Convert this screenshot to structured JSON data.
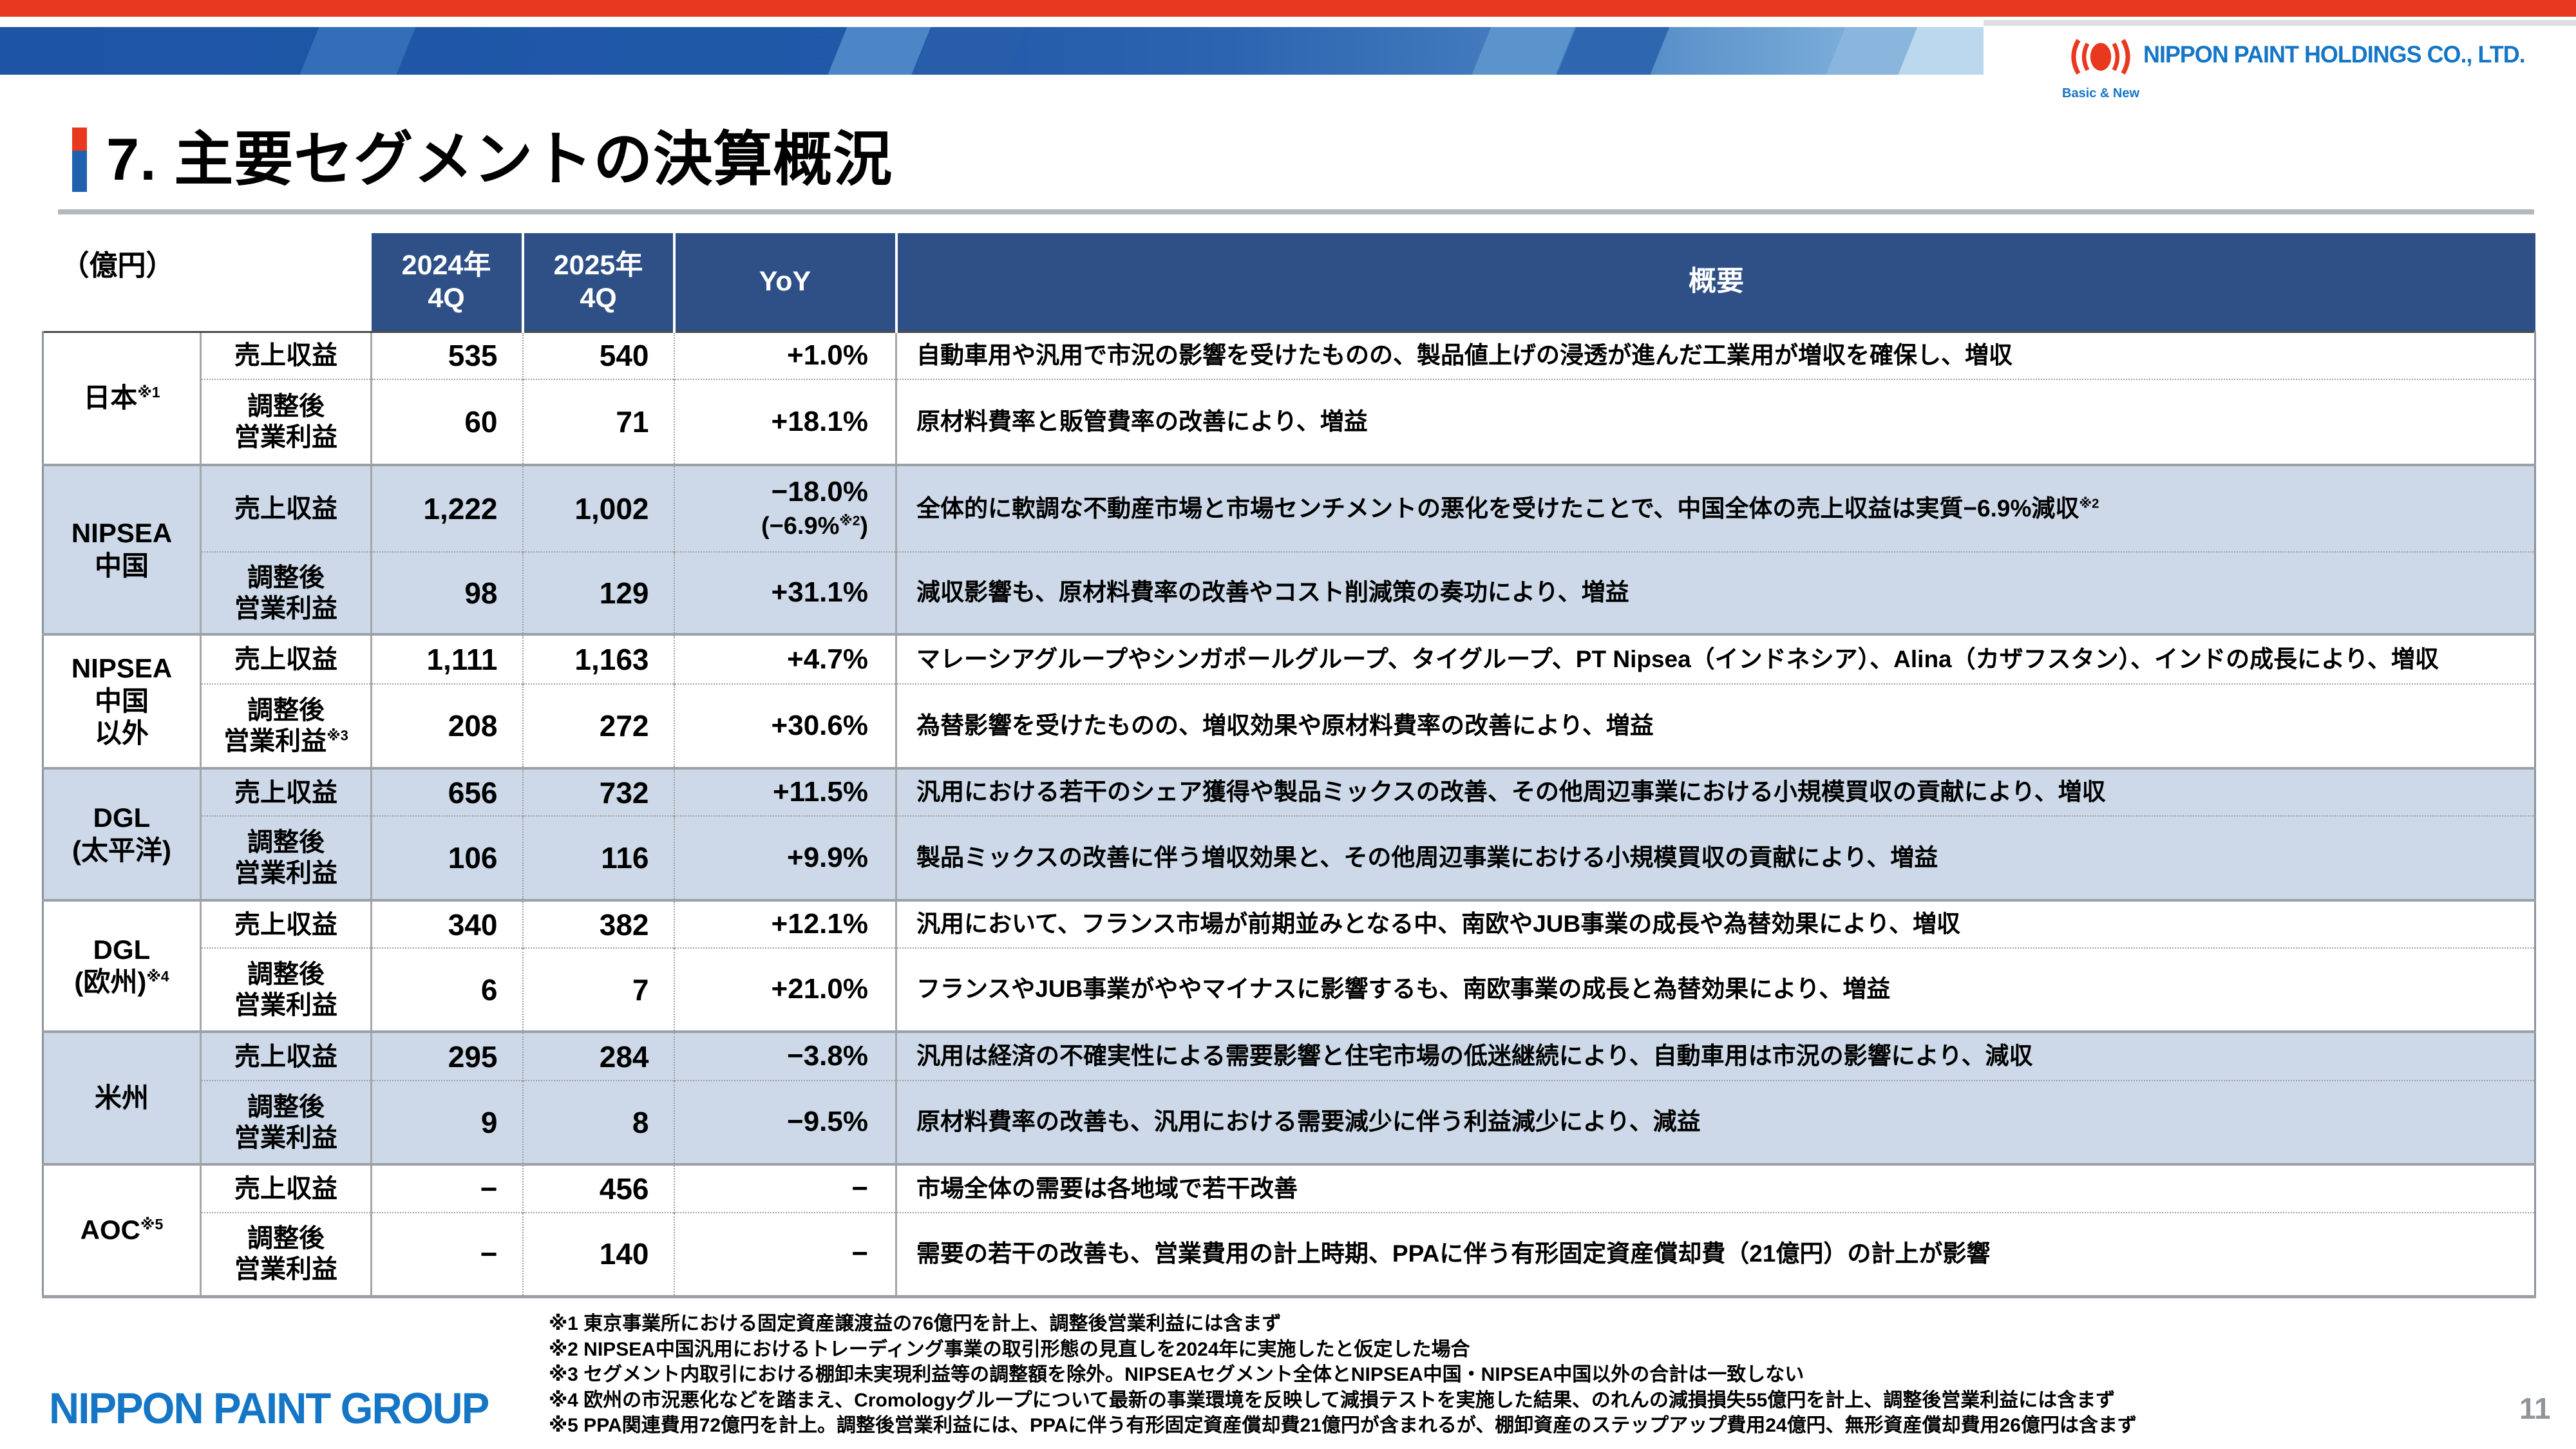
{
  "page": {
    "title": "7. 主要セグメントの決算概況",
    "page_number": "11",
    "footer_logo_text": "NIPPON PAINT GROUP",
    "top_logo": {
      "company": "NIPPON PAINT HOLDINGS CO., LTD.",
      "tagline": "Basic & New"
    }
  },
  "table": {
    "unit_label": "（億円）",
    "headers": {
      "y2024": [
        "2024年",
        "4Q"
      ],
      "y2025": [
        "2025年",
        "4Q"
      ],
      "yoy": "YoY",
      "summary": "概要"
    },
    "metric_labels": {
      "revenue": "売上収益",
      "adj_op_lines": [
        "調整後",
        "営業利益"
      ]
    },
    "segments": [
      {
        "lines": [
          "日本"
        ],
        "sup": "※1",
        "revenue": {
          "q2024": "535",
          "q2025": "540",
          "yoy": "+1.0%",
          "desc": "自動車用や汎用で市況の影響を受けたものの、製品値上げの浸透が進んだ工業用が増収を確保し、増収"
        },
        "adj_op": {
          "q2024": "60",
          "q2025": "71",
          "yoy": "+18.1%",
          "desc": "原材料費率と販管費率の改善により、増益"
        }
      },
      {
        "lines": [
          "NIPSEA",
          "中国"
        ],
        "sup": "",
        "revenue": {
          "q2024": "1,222",
          "q2025": "1,002",
          "yoy": {
            "main": "−18.0%",
            "sub_pre": "(−6.9%",
            "sub_sup": "※2",
            "sub_post": ")"
          },
          "desc": "全体的に軟調な不動産市場と市場センチメントの悪化を受けたことで、中国全体の売上収益は実質−6.9%減収",
          "desc_sup": "※2"
        },
        "adj_op": {
          "q2024": "98",
          "q2025": "129",
          "yoy": "+31.1%",
          "desc": "減収影響も、原材料費率の改善やコスト削減策の奏功により、増益"
        }
      },
      {
        "lines": [
          "NIPSEA",
          "中国",
          "以外"
        ],
        "sup": "",
        "revenue": {
          "q2024": "1,111",
          "q2025": "1,163",
          "yoy": "+4.7%",
          "desc": "マレーシアグループやシンガポールグループ、タイグループ、PT Nipsea（インドネシア）、Alina（カザフスタン）、インドの成長により、増収"
        },
        "adj_op": {
          "q2024": "208",
          "q2025": "272",
          "yoy": "+30.6%",
          "metric_sup": "※3",
          "desc": "為替影響を受けたものの、増収効果や原材料費率の改善により、増益"
        }
      },
      {
        "lines": [
          "DGL",
          "(太平洋)"
        ],
        "sup": "",
        "revenue": {
          "q2024": "656",
          "q2025": "732",
          "yoy": "+11.5%",
          "desc": "汎用における若干のシェア獲得や製品ミックスの改善、その他周辺事業における小規模買収の貢献により、増収"
        },
        "adj_op": {
          "q2024": "106",
          "q2025": "116",
          "yoy": "+9.9%",
          "desc": "製品ミックスの改善に伴う増収効果と、その他周辺事業における小規模買収の貢献により、増益"
        }
      },
      {
        "lines": [
          "DGL",
          "(欧州)"
        ],
        "sup": "※4",
        "revenue": {
          "q2024": "340",
          "q2025": "382",
          "yoy": "+12.1%",
          "desc": "汎用において、フランス市場が前期並みとなる中、南欧やJUB事業の成長や為替効果により、増収"
        },
        "adj_op": {
          "q2024": "6",
          "q2025": "7",
          "yoy": "+21.0%",
          "desc": "フランスやJUB事業がややマイナスに影響するも、南欧事業の成長と為替効果により、増益"
        }
      },
      {
        "lines": [
          "米州"
        ],
        "sup": "",
        "revenue": {
          "q2024": "295",
          "q2025": "284",
          "yoy": "−3.8%",
          "desc": "汎用は経済の不確実性による需要影響と住宅市場の低迷継続により、自動車用は市況の影響により、減収"
        },
        "adj_op": {
          "q2024": "9",
          "q2025": "8",
          "yoy": "−9.5%",
          "desc": "原材料費率の改善も、汎用における需要減少に伴う利益減少により、減益"
        }
      },
      {
        "lines": [
          "AOC"
        ],
        "sup": "※5",
        "revenue": {
          "q2024": "−",
          "q2025": "456",
          "yoy": "−",
          "desc": "市場全体の需要は各地域で若干改善"
        },
        "adj_op": {
          "q2024": "−",
          "q2025": "140",
          "yoy": "−",
          "desc": "需要の若干の改善も、営業費用の計上時期、PPAに伴う有形固定資産償却費（21億円）の計上が影響"
        }
      }
    ],
    "footnotes": [
      "※1 東京事業所における固定資産譲渡益の76億円を計上、調整後営業利益には含まず",
      "※2 NIPSEA中国汎用におけるトレーディング事業の取引形態の見直しを2024年に実施したと仮定した場合",
      "※3 セグメント内取引における棚卸未実現利益等の調整額を除外。NIPSEAセグメント全体とNIPSEA中国・NIPSEA中国以外の合計は一致しない",
      "※4 欧州の市況悪化などを踏まえ、Cromologyグループについて最新の事業環境を反映して減損テストを実施した結果、のれんの減損損失55億円を計上、調整後営業利益には含まず",
      "※5 PPA関連費用72億円を計上。調整後営業利益には、PPAに伴う有形固定資産償却費21億円が含まれるが、棚卸資産のステップアップ費用24億円、無形資産償却費用26億円は含まず"
    ]
  },
  "colors": {
    "brand_red": "#e8391f",
    "banner_blue": "#1d54a5",
    "header_blue": "#2e5086",
    "shaded_row_blue": "#cdd9e8",
    "logo_blue": "#1576c6"
  }
}
